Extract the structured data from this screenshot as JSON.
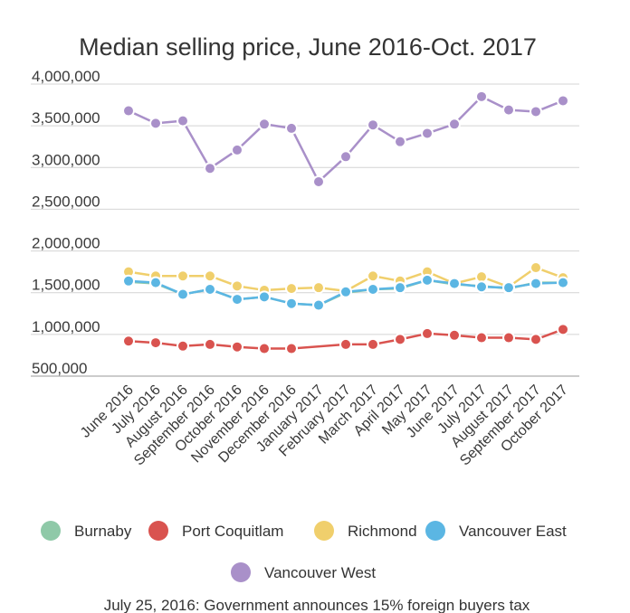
{
  "chart_data": {
    "type": "line",
    "title": "Median selling price, June 2016-Oct. 2017",
    "xlabel": "",
    "ylabel": "",
    "ylim": [
      500000,
      4000000
    ],
    "y_ticks": [
      "4,000,000",
      "3,500,000",
      "3,000,000",
      "2,500,000",
      "2,000,000",
      "1,500,000",
      "1,000,000",
      "500,000"
    ],
    "y_tick_values": [
      4000000,
      3500000,
      3000000,
      2500000,
      2000000,
      1500000,
      1000000,
      500000
    ],
    "categories": [
      "June 2016",
      "July 2016",
      "August 2016",
      "September 2016",
      "October 2016",
      "November 2016",
      "December 2016",
      "January 2017",
      "February 2017",
      "March 2017",
      "April 2017",
      "May 2017",
      "June 2017",
      "July 2017",
      "August 2017",
      "September 2017",
      "October 2017"
    ],
    "grid": "horizontal",
    "legend_position": "bottom",
    "series": [
      {
        "name": "Burnaby",
        "color": "#8fc9a8",
        "values": [
          1630000,
          1610000,
          1480000,
          1540000,
          1420000,
          1450000,
          1370000,
          1350000,
          1500000,
          1540000,
          1550000,
          1650000,
          1600000,
          1580000,
          1550000,
          1620000,
          1620000
        ]
      },
      {
        "name": "Port Coquitlam",
        "color": "#d9534f",
        "values": [
          920000,
          900000,
          860000,
          880000,
          850000,
          830000,
          830000,
          null,
          880000,
          880000,
          940000,
          1010000,
          990000,
          960000,
          960000,
          940000,
          1060000
        ]
      },
      {
        "name": "Richmond",
        "color": "#f0cf6c",
        "values": [
          1750000,
          1700000,
          1700000,
          1700000,
          1580000,
          1530000,
          1550000,
          1560000,
          1520000,
          1700000,
          1640000,
          1750000,
          1610000,
          1690000,
          1570000,
          1800000,
          1680000
        ]
      },
      {
        "name": "Vancouver East",
        "color": "#5bb6e3",
        "values": [
          1640000,
          1620000,
          1480000,
          1540000,
          1420000,
          1450000,
          1370000,
          1350000,
          1510000,
          1540000,
          1560000,
          1650000,
          1610000,
          1570000,
          1560000,
          1610000,
          1620000
        ]
      },
      {
        "name": "Vancouver West",
        "color": "#a990c9",
        "values": [
          3680000,
          3530000,
          3560000,
          2990000,
          3210000,
          3520000,
          3470000,
          2830000,
          3130000,
          3510000,
          3310000,
          3410000,
          3520000,
          3850000,
          3690000,
          3670000,
          3800000
        ]
      }
    ],
    "annotation": "July 25, 2016: Government announces 15% foreign buyers tax"
  }
}
